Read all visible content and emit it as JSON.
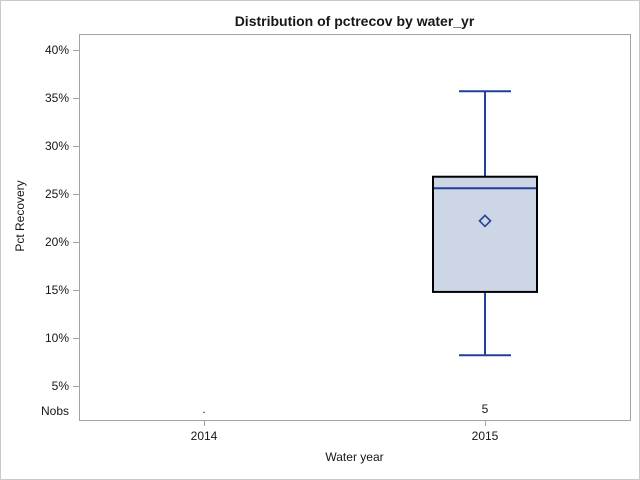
{
  "title": "Distribution of pctrecov by water_yr",
  "colors": {
    "background": "#ffffff",
    "outer_border": "#c9c9c9",
    "frame": "#a3a3a3",
    "tick": "#a3a3a3",
    "text": "#161616",
    "box_fill": "#ccd6e4",
    "box_border": "#000000",
    "whisker": "#21409a",
    "median": "#21409a",
    "mean_marker": "#21409a"
  },
  "chart_data": {
    "type": "box",
    "title": "Distribution of pctrecov by water_yr",
    "xlabel": "Water year",
    "ylabel": "Pct Recovery",
    "y_ticks": [
      40,
      35,
      30,
      25,
      20,
      15,
      10,
      5
    ],
    "y_tick_labels": [
      "40%",
      "35%",
      "30%",
      "25%",
      "20%",
      "15%",
      "10%",
      "5%"
    ],
    "ylim_shown": [
      5,
      40
    ],
    "grid": "off",
    "legend": "none",
    "categories": [
      "2014",
      "2015"
    ],
    "nobs_label": "Nobs",
    "series": [
      {
        "category": "2014",
        "nobs": ".",
        "box": null
      },
      {
        "category": "2015",
        "nobs": "5",
        "box": {
          "whisker_low": 8.2,
          "q1": 14.8,
          "median": 25.6,
          "q3": 26.8,
          "whisker_high": 35.7,
          "mean": 22.2
        }
      }
    ]
  }
}
